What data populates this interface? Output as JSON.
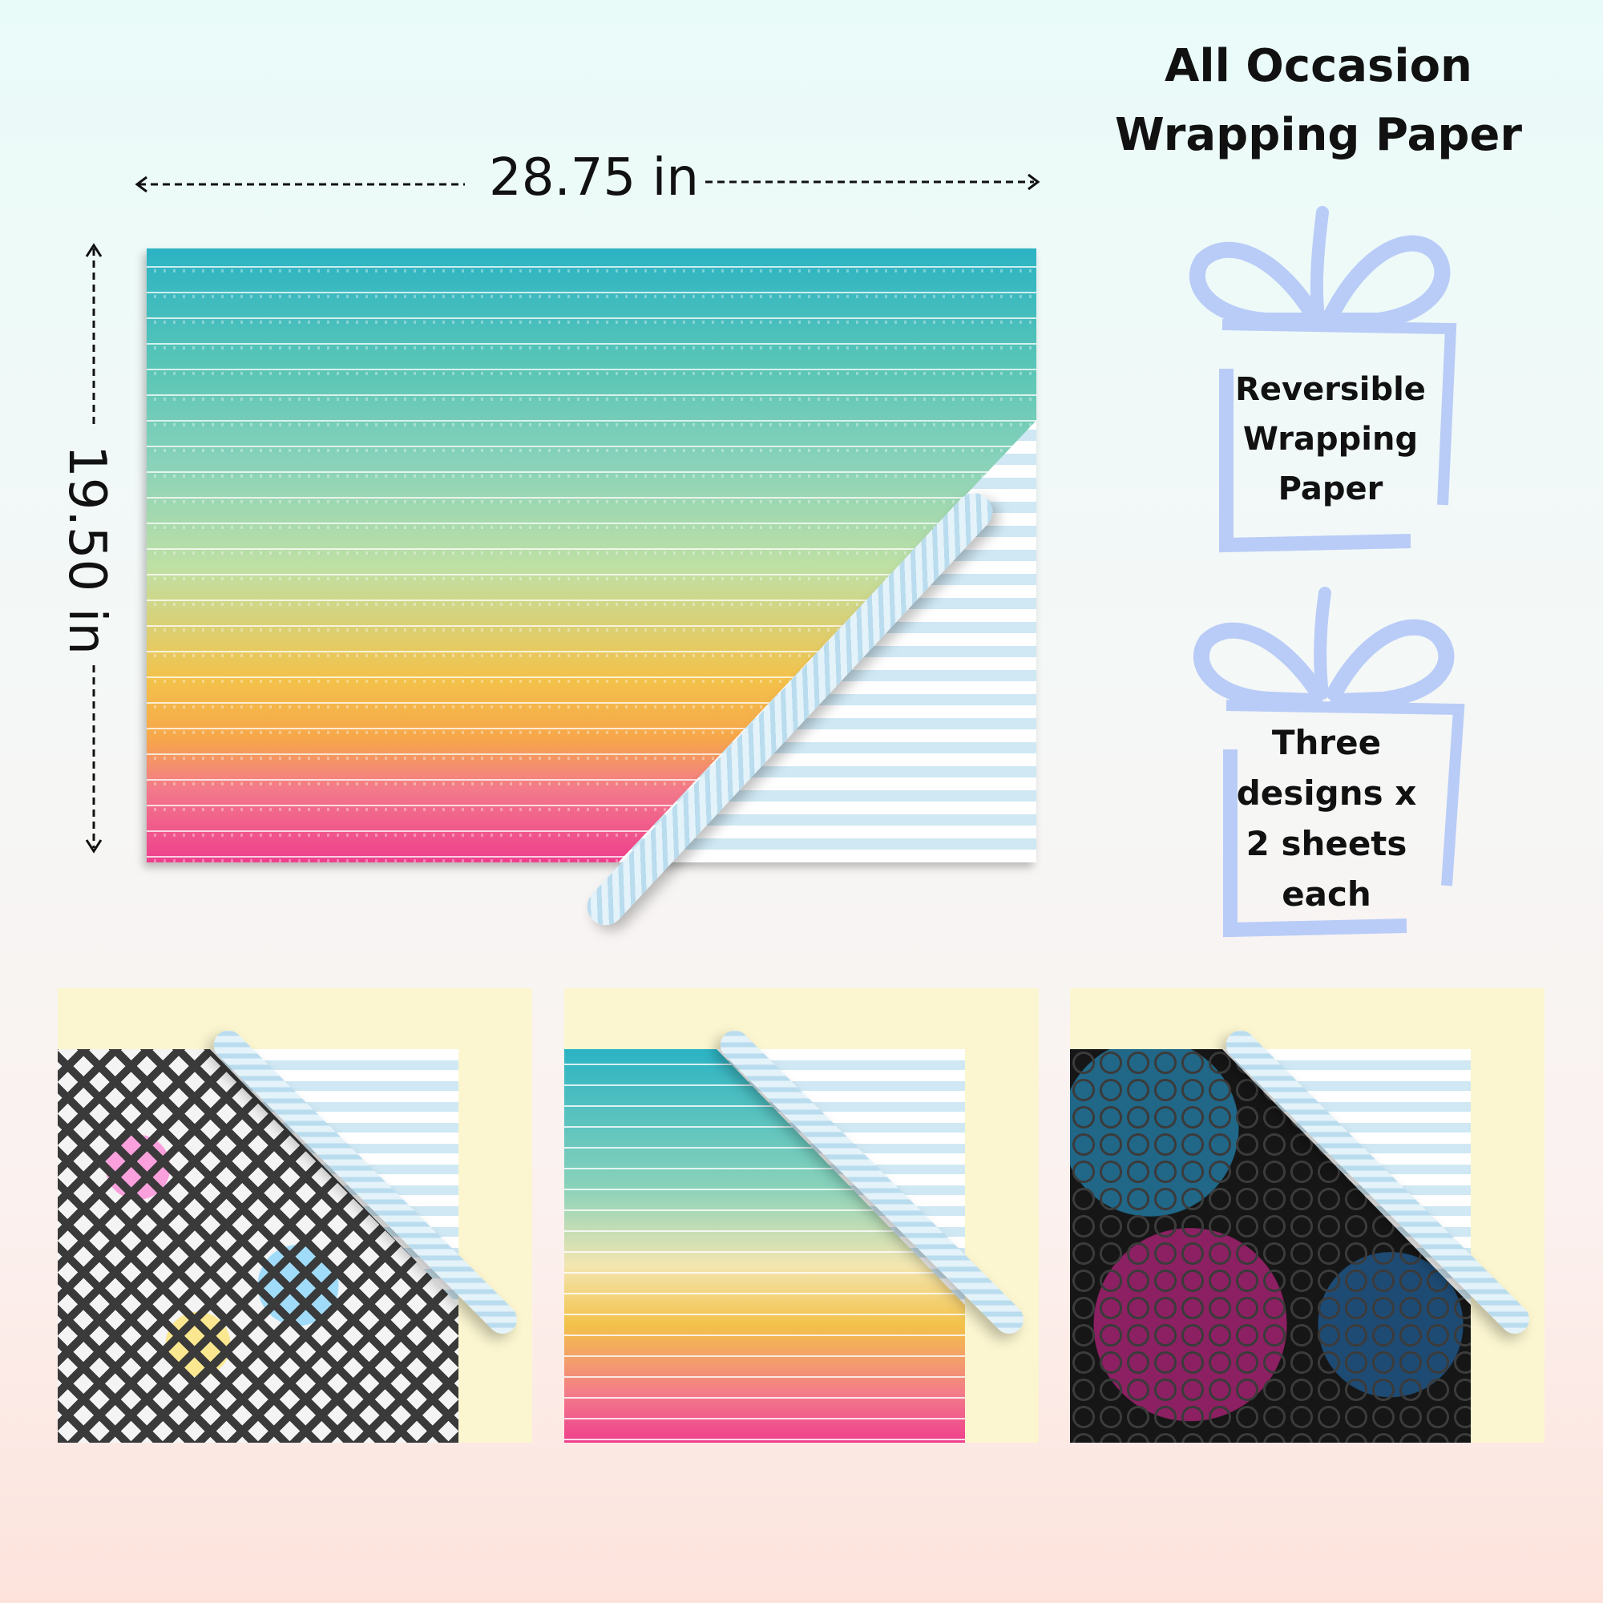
{
  "header": {
    "title_line1": "All Occasion",
    "title_line2": "Wrapping Paper"
  },
  "dimensions": {
    "width_label": "28.75 in",
    "height_label": "19.50 in"
  },
  "badges": [
    {
      "lines": [
        "Reversible",
        "Wrapping",
        "Paper"
      ]
    },
    {
      "lines": [
        "Three",
        "designs x",
        "2 sheets",
        "each"
      ]
    }
  ],
  "colors": {
    "ribbon": "#b9ccf7",
    "thumb_background": "#fbf6d0",
    "text": "#111111"
  },
  "designs": [
    {
      "icon": "geometric-diamond-pattern"
    },
    {
      "icon": "pastel-stripe-pattern"
    },
    {
      "icon": "neon-rings-pattern"
    }
  ]
}
